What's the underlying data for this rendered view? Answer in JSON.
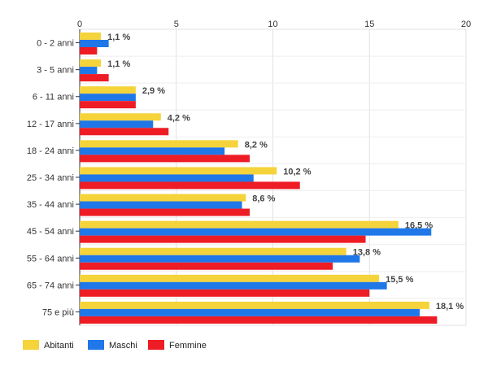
{
  "chart_data": {
    "type": "bar",
    "orientation": "horizontal",
    "categories": [
      "0 - 2 anni",
      "3 - 5 anni",
      "6 - 11 anni",
      "12 - 17 anni",
      "18 - 24 anni",
      "25 - 34 anni",
      "35 - 44 anni",
      "45 - 54 anni",
      "55 - 64 anni",
      "65 - 74 anni",
      "75 e più"
    ],
    "series": [
      {
        "name": "Abitanti",
        "color": "#f5d33a",
        "values": [
          1.1,
          1.1,
          2.9,
          4.2,
          8.2,
          10.2,
          8.6,
          16.5,
          13.8,
          15.5,
          18.1
        ]
      },
      {
        "name": "Maschi",
        "color": "#1f77e8",
        "values": [
          1.5,
          0.9,
          2.9,
          3.8,
          7.5,
          9.0,
          8.4,
          18.2,
          14.5,
          15.9,
          17.6
        ]
      },
      {
        "name": "Femmine",
        "color": "#ee1c25",
        "values": [
          0.9,
          1.5,
          2.9,
          4.6,
          8.8,
          11.4,
          8.8,
          14.8,
          13.1,
          15.0,
          18.5
        ]
      }
    ],
    "data_labels": [
      "1,1 %",
      "1,1 %",
      "2,9 %",
      "4,2 %",
      "8,2 %",
      "10,2 %",
      "8,6 %",
      "16,5 %",
      "13,8 %",
      "15,5 %",
      "18,1 %"
    ],
    "x_ticks": [
      "0",
      "5",
      "10",
      "15",
      "20"
    ],
    "xlim": [
      0,
      20
    ],
    "grid": true,
    "legend_position": "bottom-left",
    "title": "",
    "xlabel": "",
    "ylabel": ""
  }
}
